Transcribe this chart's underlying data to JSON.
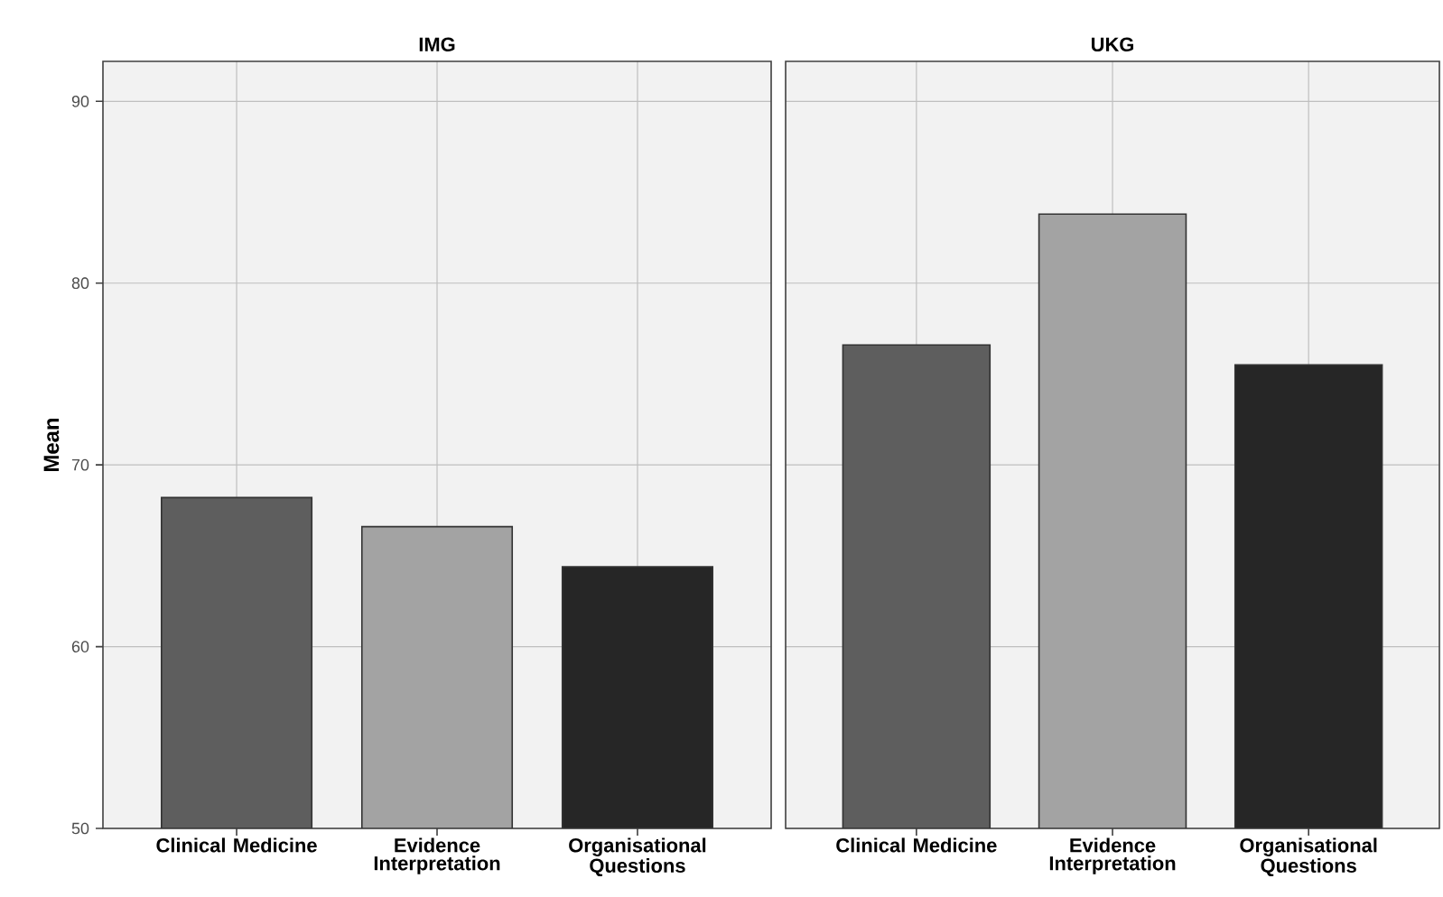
{
  "chart_data": [
    {
      "type": "bar",
      "title": "IMG",
      "ylabel": "Mean",
      "categories": [
        "Clinical Medicine",
        "Evidence Interpretation",
        "Organisational Questions"
      ],
      "values": [
        68.2,
        66.6,
        64.4
      ],
      "colors": [
        "#5e5e5e",
        "#a3a3a3",
        "#262626"
      ],
      "ylim": [
        50,
        92.2
      ],
      "yticks": [
        50,
        60,
        70,
        80,
        90
      ],
      "grid": true
    },
    {
      "type": "bar",
      "title": "UKG",
      "categories": [
        "Clinical Medicine",
        "Evidence Interpretation",
        "Organisational Questions"
      ],
      "values": [
        76.6,
        83.8,
        75.5
      ],
      "colors": [
        "#5e5e5e",
        "#a3a3a3",
        "#262626"
      ],
      "ylim": [
        50,
        92.2
      ],
      "yticks": [
        50,
        60,
        70,
        80,
        90
      ],
      "grid": true,
      "tick_labels": "x"
    }
  ]
}
